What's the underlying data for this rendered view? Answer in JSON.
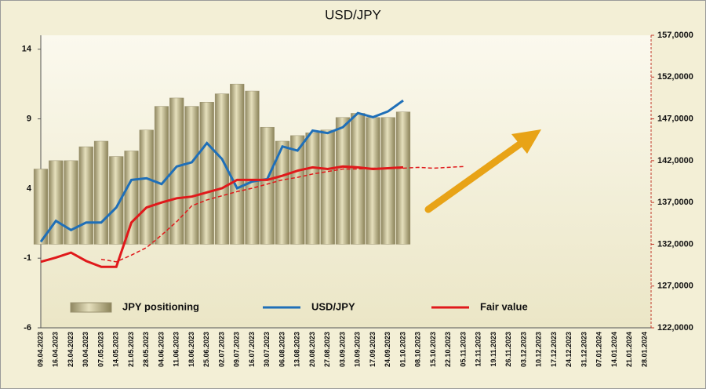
{
  "chart_data": {
    "type": "bar",
    "title": "USD/JPY",
    "categories": [
      "09.04.2023",
      "16.04.2023",
      "23.04.2023",
      "30.04.2023",
      "07.05.2023",
      "14.05.2023",
      "21.05.2023",
      "28.05.2023",
      "04.06.2023",
      "11.06.2023",
      "18.06.2023",
      "25.06.2023",
      "02.07.2023",
      "09.07.2023",
      "16.07.2023",
      "30.07.2023",
      "06.08.2023",
      "13.08.2023",
      "20.08.2023",
      "27.08.2023",
      "03.09.2023",
      "10.09.2023",
      "17.09.2023",
      "24.09.2023",
      "01.10.2023",
      "08.10.2023",
      "15.10.2023",
      "22.10.2023",
      "05.11.2023",
      "12.11.2023",
      "19.11.2023",
      "26.11.2023",
      "03.12.2023",
      "10.12.2023",
      "17.12.2023",
      "24.12.2023",
      "31.12.2023",
      "07.01.2024",
      "14.01.2024",
      "21.01.2024",
      "28.01.2024"
    ],
    "ylim": [
      -6,
      15
    ],
    "yticks": [
      14,
      9,
      4,
      -1,
      -6
    ],
    "y2lim": [
      122,
      157
    ],
    "y2ticks": [
      {
        "value": 157,
        "label": "157,0000"
      },
      {
        "value": 152,
        "label": "152,0000"
      },
      {
        "value": 147,
        "label": "147,0000"
      },
      {
        "value": 142,
        "label": "142,0000"
      },
      {
        "value": 137,
        "label": "137,0000"
      },
      {
        "value": 132,
        "label": "132,0000"
      },
      {
        "value": 127,
        "label": "127,0000"
      },
      {
        "value": 122,
        "label": "122,0000"
      }
    ],
    "grid": false,
    "series": [
      {
        "name": "JPY positioning",
        "type": "bar",
        "color": "#bdb58a",
        "axis": "y",
        "values": [
          5.4,
          6.0,
          6.0,
          7.0,
          7.4,
          6.3,
          6.7,
          8.2,
          9.9,
          10.5,
          9.9,
          10.2,
          10.8,
          11.5,
          11.0,
          8.4,
          7.4,
          7.8,
          8.0,
          8.2,
          9.1,
          9.4,
          9.1,
          9.1,
          9.5,
          null,
          null,
          null,
          null,
          null,
          null,
          null,
          null,
          null,
          null,
          null,
          null,
          null,
          null,
          null,
          null
        ]
      },
      {
        "name": "USD/JPY",
        "type": "line",
        "color": "#1f6fb8",
        "axis": "y2",
        "values": [
          132.3,
          134.8,
          133.7,
          134.6,
          134.6,
          136.4,
          139.7,
          139.9,
          139.2,
          141.3,
          141.8,
          144.1,
          142.2,
          138.7,
          139.5,
          139.8,
          143.7,
          143.2,
          145.6,
          145.3,
          146.0,
          147.7,
          147.2,
          147.9,
          149.2,
          null,
          null,
          null,
          null,
          null,
          null,
          null,
          null,
          null,
          null,
          null,
          null,
          null,
          null,
          null,
          null
        ]
      },
      {
        "name": "Fair value",
        "type": "line",
        "color": "#e0191b",
        "axis": "y2",
        "values": [
          129.9,
          130.4,
          131.0,
          130.0,
          129.3,
          129.3,
          134.6,
          136.4,
          137.0,
          137.5,
          137.7,
          138.2,
          138.7,
          139.7,
          139.7,
          139.7,
          140.2,
          140.8,
          141.2,
          141.0,
          141.3,
          141.2,
          141.0,
          141.1,
          141.2,
          null,
          null,
          null,
          null,
          null,
          null,
          null,
          null,
          null,
          null,
          null,
          null,
          null,
          null,
          null,
          null
        ]
      },
      {
        "type": "line",
        "dash": true,
        "color": "#e0191b",
        "axis": "y2",
        "values": [
          null,
          null,
          null,
          null,
          130.2,
          129.9,
          130.7,
          131.6,
          133.1,
          134.7,
          136.6,
          137.3,
          137.8,
          138.3,
          138.7,
          139.2,
          139.7,
          140.0,
          140.4,
          140.7,
          141.0,
          141.0,
          141.1,
          141.1,
          141.1,
          141.2,
          141.1,
          141.2,
          141.3,
          null,
          null,
          null,
          null,
          null,
          null,
          null,
          null,
          null,
          null,
          null,
          null
        ]
      }
    ]
  }
}
